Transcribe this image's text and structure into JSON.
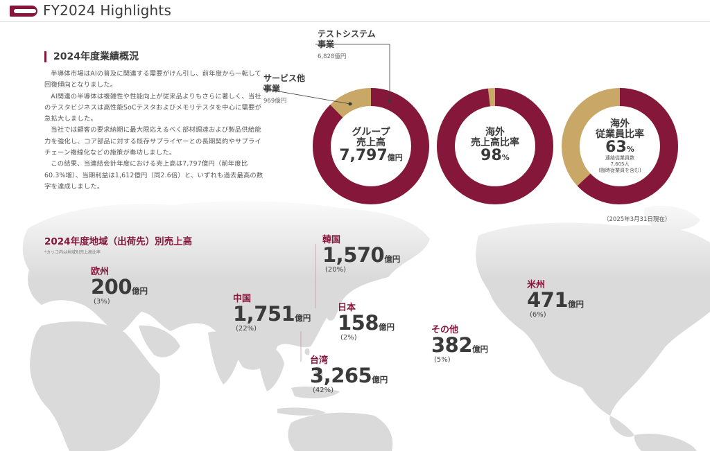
{
  "header": {
    "title": "FY2024 Highlights"
  },
  "overview": {
    "heading": "2024年度業績概況",
    "paragraphs": [
      "半導体市場はAIの普及に関連する需要がけん引し、前年度から一転して回復傾向となりました。",
      "AI関連の半導体は複雑性や性能向上が従来品よりもさらに著しく、当社のテスタビジネスは高性能SoCテスタおよびメモリテスタを中心に需要が急拡大しました。",
      "当社では顧客の要求納期に最大限応えるべく部材調達および製品供給能力を強化し、コア部品に対する既存サプライヤーとの長期契約やサプライチェーン複線化などの施策が奏功しました。",
      "この結果、当連結会計年度における売上高は7,797億円（前年度比60.3%増）、当期利益は1,612億円（同2.6倍）と、いずれも過去最高の数字を達成しました。"
    ]
  },
  "donuts": {
    "group": {
      "line1": "グループ",
      "line2": "売上高",
      "value": "7,797",
      "unit": "億円",
      "fraction": 0.876,
      "segments": {
        "test": {
          "name1": "テストシステム",
          "name2": "事業",
          "value": "6,828億円"
        },
        "service": {
          "name1": "サービス他",
          "name2": "事業",
          "value": "969億円"
        }
      }
    },
    "overseas_sales": {
      "line1": "海外",
      "line2": "売上高比率",
      "value": "98",
      "unit": "%",
      "fraction": 0.98
    },
    "overseas_employees": {
      "line1": "海外",
      "line2": "従業員比率",
      "value": "63",
      "unit": "%",
      "note1": "連結従業員数",
      "note2": "7,605人",
      "note3": "(臨時従業員を含む)",
      "fraction": 0.63
    },
    "date_note": "（2025年3月31日現在）"
  },
  "regions": {
    "title": "2024年度地域（出荷先）別売上高",
    "note": "*カッコ内は地域別売上高比率",
    "unit": "億円",
    "items": {
      "europe": {
        "name": "欧州",
        "value": "200",
        "pct": "(3%)"
      },
      "china": {
        "name": "中国",
        "value": "1,751",
        "pct": "(22%)"
      },
      "korea": {
        "name": "韓国",
        "value": "1,570",
        "pct": "(20%)"
      },
      "japan": {
        "name": "日本",
        "value": "158",
        "pct": "(2%)"
      },
      "taiwan": {
        "name": "台湾",
        "value": "3,265",
        "pct": "(42%)"
      },
      "other": {
        "name": "その他",
        "value": "382",
        "pct": "(5%)"
      },
      "americas": {
        "name": "米州",
        "value": "471",
        "pct": "(6%)"
      }
    }
  },
  "colors": {
    "primary": "#85173b",
    "secondary": "#c9a867",
    "map": "#d9d9d9"
  }
}
